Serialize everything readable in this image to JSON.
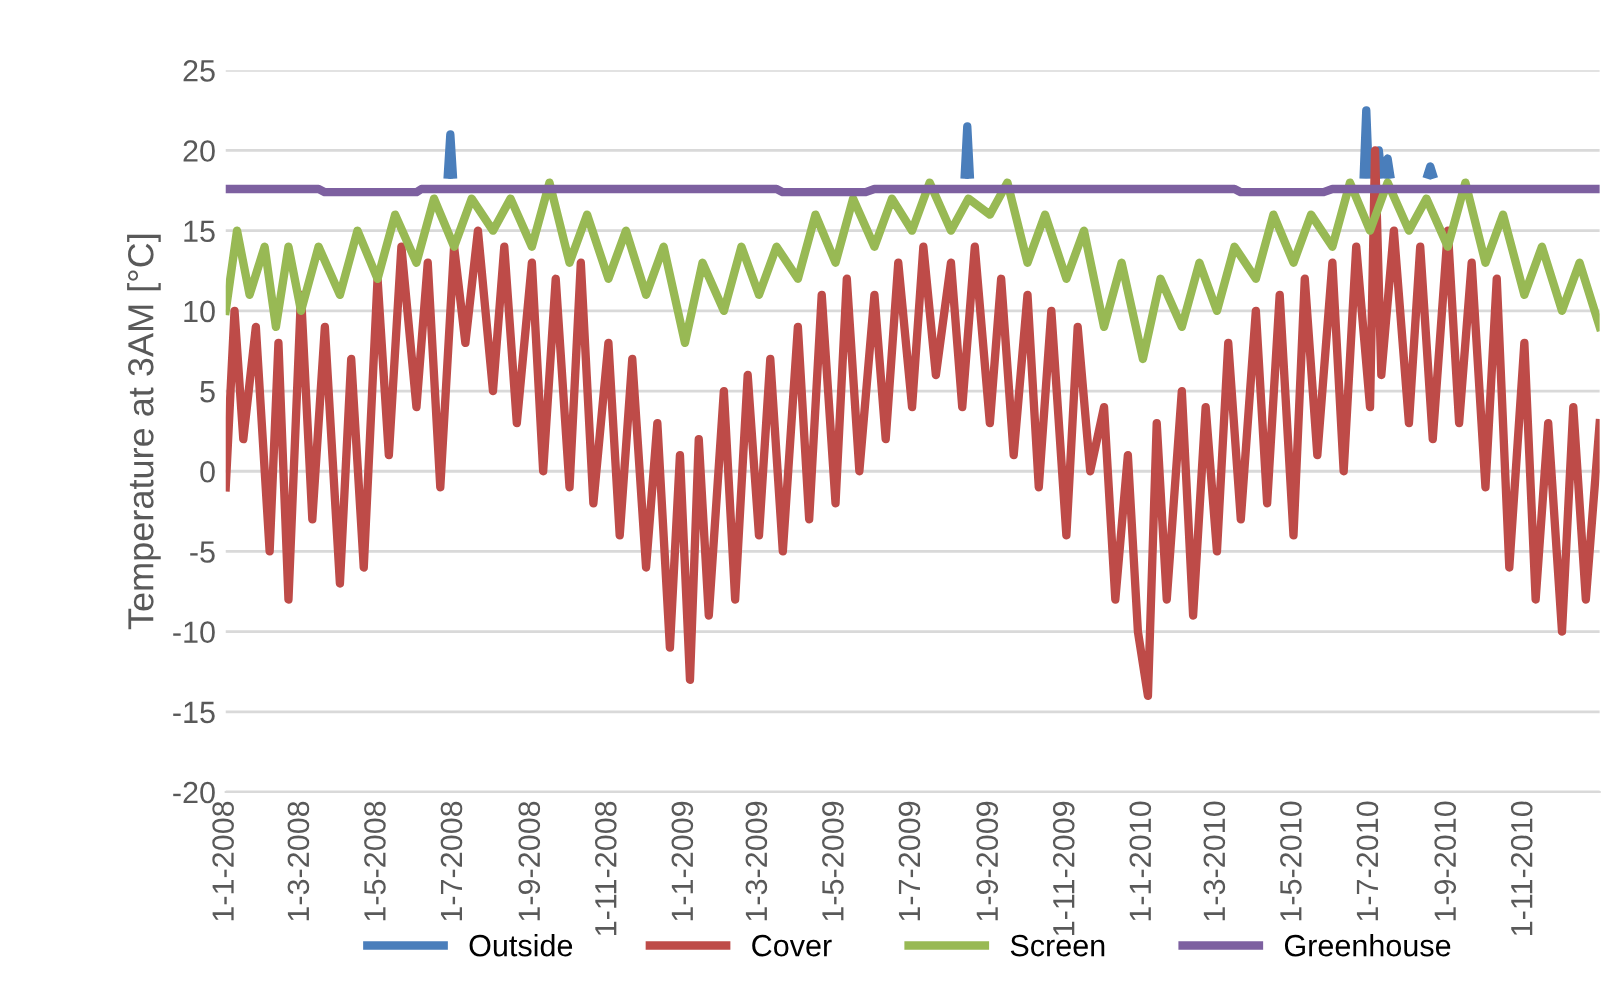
{
  "chart_data": {
    "type": "line",
    "ylabel": "Temperature at 3AM [°C]",
    "ylim": [
      -20,
      25
    ],
    "yticks": [
      -20,
      -15,
      -10,
      -5,
      0,
      5,
      10,
      15,
      20,
      25
    ],
    "xlim": [
      "2008-01-01",
      "2010-12-31"
    ],
    "xticks": [
      {
        "value": "2008-01-01",
        "label": "1-1-2008"
      },
      {
        "value": "2008-03-01",
        "label": "1-3-2008"
      },
      {
        "value": "2008-05-01",
        "label": "1-5-2008"
      },
      {
        "value": "2008-07-01",
        "label": "1-7-2008"
      },
      {
        "value": "2008-09-01",
        "label": "1-9-2008"
      },
      {
        "value": "2008-11-01",
        "label": "1-11-2008"
      },
      {
        "value": "2009-01-01",
        "label": "1-1-2009"
      },
      {
        "value": "2009-03-01",
        "label": "1-3-2009"
      },
      {
        "value": "2009-05-01",
        "label": "1-5-2009"
      },
      {
        "value": "2009-07-01",
        "label": "1-7-2009"
      },
      {
        "value": "2009-09-01",
        "label": "1-9-2009"
      },
      {
        "value": "2009-11-01",
        "label": "1-11-2009"
      },
      {
        "value": "2010-01-01",
        "label": "1-1-2010"
      },
      {
        "value": "2010-03-01",
        "label": "1-3-2010"
      },
      {
        "value": "2010-05-01",
        "label": "1-5-2010"
      },
      {
        "value": "2010-07-01",
        "label": "1-7-2010"
      },
      {
        "value": "2010-09-01",
        "label": "1-9-2010"
      },
      {
        "value": "2010-11-01",
        "label": "1-11-2010"
      }
    ],
    "grid": "y",
    "legend": "bottom",
    "marker": "none",
    "line_style": "solid",
    "series": [
      {
        "name": "Outside",
        "color": "#4a7ebb",
        "x": [
          "2008-06-26",
          "2008-06-28",
          "2008-06-30",
          "2008-07-01",
          "2009-08-12",
          "2009-08-14",
          "2009-08-16",
          "2009-08-17",
          "2010-06-26",
          "2010-06-28",
          "2010-06-30",
          "2010-07-01",
          "2010-07-06",
          "2010-07-08",
          "2010-07-10",
          "2010-07-11",
          "2010-07-13",
          "2010-07-15",
          "2010-07-17",
          "2010-07-18",
          "2010-08-16",
          "2010-08-18",
          "2010-08-20"
        ],
        "values": [
          18.5,
          21,
          18.5,
          null,
          18.5,
          21.5,
          18.5,
          null,
          18.5,
          22.5,
          18.5,
          null,
          18.5,
          20,
          18.5,
          null,
          18.5,
          19.5,
          18.5,
          null,
          18.5,
          19,
          18.5
        ]
      },
      {
        "name": "Cover",
        "color": "#be4b48",
        "x": [
          "2008-01-01",
          "2008-01-08",
          "2008-01-15",
          "2008-01-25",
          "2008-02-05",
          "2008-02-12",
          "2008-02-20",
          "2008-03-01",
          "2008-03-10",
          "2008-03-20",
          "2008-04-01",
          "2008-04-10",
          "2008-04-20",
          "2008-05-01",
          "2008-05-10",
          "2008-05-20",
          "2008-06-01",
          "2008-06-10",
          "2008-06-20",
          "2008-07-01",
          "2008-07-10",
          "2008-07-20",
          "2008-08-01",
          "2008-08-10",
          "2008-08-20",
          "2008-09-01",
          "2008-09-10",
          "2008-09-20",
          "2008-10-01",
          "2008-10-10",
          "2008-10-20",
          "2008-11-01",
          "2008-11-10",
          "2008-11-20",
          "2008-12-01",
          "2008-12-10",
          "2008-12-20",
          "2008-12-28",
          "2009-01-05",
          "2009-01-12",
          "2009-01-20",
          "2009-02-01",
          "2009-02-10",
          "2009-02-20",
          "2009-03-01",
          "2009-03-10",
          "2009-03-20",
          "2009-04-01",
          "2009-04-10",
          "2009-04-20",
          "2009-05-01",
          "2009-05-10",
          "2009-05-20",
          "2009-06-01",
          "2009-06-10",
          "2009-06-20",
          "2009-07-01",
          "2009-07-10",
          "2009-07-20",
          "2009-08-01",
          "2009-08-10",
          "2009-08-20",
          "2009-09-01",
          "2009-09-10",
          "2009-09-20",
          "2009-10-01",
          "2009-10-10",
          "2009-10-20",
          "2009-11-01",
          "2009-11-10",
          "2009-11-20",
          "2009-12-01",
          "2009-12-10",
          "2009-12-20",
          "2009-12-28",
          "2010-01-05",
          "2010-01-12",
          "2010-01-20",
          "2010-02-01",
          "2010-02-10",
          "2010-02-20",
          "2010-03-01",
          "2010-03-10",
          "2010-03-20",
          "2010-04-01",
          "2010-04-10",
          "2010-04-20",
          "2010-05-01",
          "2010-05-10",
          "2010-05-20",
          "2010-06-01",
          "2010-06-10",
          "2010-06-20",
          "2010-07-01",
          "2010-07-05",
          "2010-07-10",
          "2010-07-20",
          "2010-08-01",
          "2010-08-10",
          "2010-08-20",
          "2010-09-01",
          "2010-09-10",
          "2010-09-20",
          "2010-10-01",
          "2010-10-10",
          "2010-10-20",
          "2010-11-01",
          "2010-11-10",
          "2010-11-20",
          "2010-12-01",
          "2010-12-10",
          "2010-12-20",
          "2010-12-31"
        ],
        "values": [
          -1,
          10,
          2,
          9,
          -5,
          8,
          -8,
          11,
          -3,
          9,
          -7,
          7,
          -6,
          12,
          1,
          14,
          4,
          13,
          -1,
          14,
          8,
          15,
          5,
          14,
          3,
          13,
          0,
          12,
          -1,
          13,
          -2,
          8,
          -4,
          7,
          -6,
          3,
          -11,
          1,
          -13,
          2,
          -9,
          5,
          -8,
          6,
          -4,
          7,
          -5,
          9,
          -3,
          11,
          -2,
          12,
          0,
          11,
          2,
          13,
          4,
          14,
          6,
          13,
          4,
          14,
          3,
          12,
          1,
          11,
          -1,
          10,
          -4,
          9,
          0,
          4,
          -8,
          1,
          -10,
          -14,
          3,
          -8,
          5,
          -9,
          4,
          -5,
          8,
          -3,
          10,
          -2,
          11,
          -4,
          12,
          1,
          13,
          0,
          14,
          4,
          20,
          6,
          15,
          3,
          14,
          2,
          15,
          3,
          13,
          -1,
          12,
          -6,
          8,
          -8,
          3,
          -10,
          4,
          -8,
          3
        ]
      },
      {
        "name": "Screen",
        "color": "#98b954",
        "x": [
          "2008-01-01",
          "2008-01-10",
          "2008-01-20",
          "2008-02-01",
          "2008-02-10",
          "2008-02-20",
          "2008-03-01",
          "2008-03-15",
          "2008-04-01",
          "2008-04-15",
          "2008-05-01",
          "2008-05-15",
          "2008-06-01",
          "2008-06-15",
          "2008-07-01",
          "2008-07-15",
          "2008-08-01",
          "2008-08-15",
          "2008-09-01",
          "2008-09-15",
          "2008-10-01",
          "2008-10-15",
          "2008-11-01",
          "2008-11-15",
          "2008-12-01",
          "2008-12-15",
          "2009-01-01",
          "2009-01-15",
          "2009-02-01",
          "2009-02-15",
          "2009-03-01",
          "2009-03-15",
          "2009-04-01",
          "2009-04-15",
          "2009-05-01",
          "2009-05-15",
          "2009-06-01",
          "2009-06-15",
          "2009-07-01",
          "2009-07-15",
          "2009-08-01",
          "2009-08-15",
          "2009-09-01",
          "2009-09-15",
          "2009-10-01",
          "2009-10-15",
          "2009-11-01",
          "2009-11-15",
          "2009-12-01",
          "2009-12-15",
          "2010-01-01",
          "2010-01-15",
          "2010-02-01",
          "2010-02-15",
          "2010-03-01",
          "2010-03-15",
          "2010-04-01",
          "2010-04-15",
          "2010-05-01",
          "2010-05-15",
          "2010-06-01",
          "2010-06-15",
          "2010-07-01",
          "2010-07-15",
          "2010-08-01",
          "2010-08-15",
          "2010-09-01",
          "2010-09-15",
          "2010-10-01",
          "2010-10-15",
          "2010-11-01",
          "2010-11-15",
          "2010-12-01",
          "2010-12-15",
          "2010-12-31"
        ],
        "values": [
          10,
          15,
          11,
          14,
          9,
          14,
          10,
          14,
          11,
          15,
          12,
          16,
          13,
          17,
          14,
          17,
          15,
          17,
          14,
          18,
          13,
          16,
          12,
          15,
          11,
          14,
          8,
          13,
          10,
          14,
          11,
          14,
          12,
          16,
          13,
          17,
          14,
          17,
          15,
          18,
          15,
          17,
          16,
          18,
          13,
          16,
          12,
          15,
          9,
          13,
          7,
          12,
          9,
          13,
          10,
          14,
          12,
          16,
          13,
          16,
          14,
          18,
          15,
          18,
          15,
          17,
          14,
          18,
          13,
          16,
          11,
          14,
          10,
          13,
          9
        ]
      },
      {
        "name": "Greenhouse",
        "color": "#7d60a0",
        "x": [
          "2008-01-01",
          "2008-03-15",
          "2008-03-20",
          "2008-06-01",
          "2008-06-05",
          "2009-03-15",
          "2009-03-20",
          "2009-05-25",
          "2009-06-01",
          "2010-03-15",
          "2010-03-20",
          "2010-05-25",
          "2010-06-01",
          "2010-12-31"
        ],
        "values": [
          17.6,
          17.6,
          17.4,
          17.4,
          17.6,
          17.6,
          17.4,
          17.4,
          17.6,
          17.6,
          17.4,
          17.4,
          17.6,
          17.6
        ]
      }
    ]
  }
}
